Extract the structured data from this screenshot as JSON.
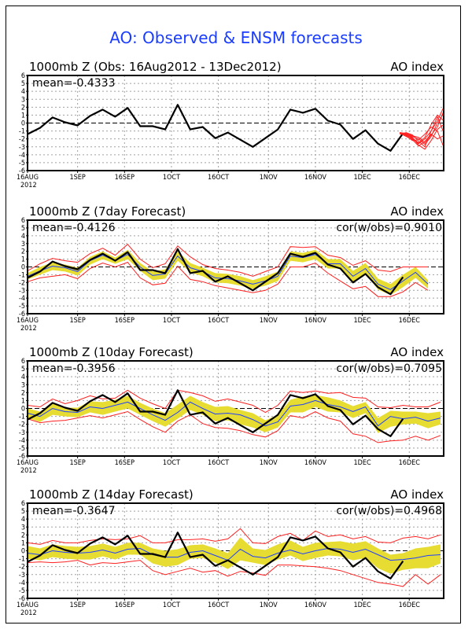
{
  "main_title": "AO: Observed & ENSM forecasts",
  "chart_data": [
    {
      "type": "line",
      "title": "1000mb Z (Obs: 16Aug2012 - 13Dec2012)",
      "right_label": "AO index",
      "stat_left": "mean=-0.4333",
      "stat_right": "",
      "ylim": [
        -6,
        6
      ],
      "yticks": [
        -6,
        -5,
        -4,
        -3,
        -2,
        -1,
        0,
        1,
        2,
        3,
        4,
        5,
        6
      ],
      "xticks": [
        "16AUG",
        "1SEP",
        "16SEP",
        "1OCT",
        "16OCT",
        "1NOV",
        "16NOV",
        "1DEC",
        "16DEC"
      ],
      "xtick_days": [
        0,
        16,
        31,
        46,
        61,
        77,
        92,
        107,
        122
      ],
      "xlabel_year": "2012",
      "grid": true,
      "x_day_range": [
        0,
        133
      ],
      "observed": {
        "days": [
          0,
          4,
          8,
          12,
          16,
          20,
          24,
          28,
          32,
          36,
          40,
          44,
          48,
          52,
          56,
          60,
          64,
          68,
          72,
          76,
          80,
          84,
          88,
          92,
          96,
          100,
          104,
          108,
          112,
          116,
          120
        ],
        "values": [
          -1.4,
          -0.6,
          0.7,
          0.1,
          -0.3,
          0.9,
          1.7,
          0.8,
          1.9,
          -0.4,
          -0.4,
          -0.8,
          2.3,
          -0.8,
          -0.5,
          -1.9,
          -1.2,
          -2.1,
          -3.0,
          -1.9,
          -0.8,
          1.7,
          1.3,
          1.8,
          0.3,
          -0.2,
          -2.0,
          -0.9,
          -2.6,
          -3.5,
          -1.3
        ]
      },
      "ensemble_forecast": {
        "color": "#ff2020",
        "start_day": 119,
        "members": [
          [
            -1.2,
            -1.3,
            -1.6,
            -1.8,
            -2.5,
            -1.5,
            -0.5,
            1.5
          ],
          [
            -1.3,
            -1.5,
            -2.0,
            -2.6,
            -2.0,
            -1.0,
            0.3,
            2.0
          ],
          [
            -1.3,
            -1.4,
            -1.8,
            -2.8,
            -3.3,
            -2.2,
            -0.8,
            -0.2
          ],
          [
            -1.2,
            -1.6,
            -2.2,
            -2.1,
            -1.4,
            -0.5,
            -1.0,
            -3.0
          ],
          [
            -1.4,
            -1.2,
            -1.5,
            -2.3,
            -3.0,
            -1.0,
            0.8,
            -1.2
          ],
          [
            -1.2,
            -1.5,
            -1.9,
            -2.5,
            -1.8,
            -0.2,
            1.0,
            0.3
          ],
          [
            -1.3,
            -1.7,
            -2.1,
            -2.9,
            -2.3,
            -1.4,
            -2.0,
            -1.6
          ],
          [
            -1.2,
            -1.4,
            -1.7,
            -2.0,
            -2.7,
            -1.7,
            0.0,
            1.2
          ]
        ]
      }
    },
    {
      "type": "line",
      "title": "1000mb Z (7day Forecast)",
      "right_label": "AO index",
      "stat_left": "mean=-0.4126",
      "stat_right": "cor(w/obs)=0.9010",
      "ylim": [
        -6,
        6
      ],
      "grid": true,
      "days": [
        0,
        4,
        8,
        12,
        16,
        20,
        24,
        28,
        32,
        36,
        40,
        44,
        48,
        52,
        56,
        60,
        64,
        68,
        72,
        76,
        80,
        84,
        88,
        92,
        96,
        100,
        104,
        108,
        112,
        116,
        120,
        124,
        128
      ],
      "observed": [
        -1.4,
        -0.6,
        0.7,
        0.1,
        -0.3,
        0.9,
        1.7,
        0.8,
        1.9,
        -0.4,
        -0.4,
        -0.8,
        2.3,
        -0.8,
        -0.5,
        -1.9,
        -1.2,
        -2.1,
        -3.0,
        -1.9,
        -0.8,
        1.7,
        1.3,
        1.8,
        0.3,
        -0.2,
        -2.0,
        -0.9,
        -2.6,
        -3.5,
        -1.3,
        null,
        null
      ],
      "ens_mean": [
        -1.2,
        -0.5,
        0.1,
        -0.1,
        -0.6,
        0.8,
        1.5,
        0.8,
        1.6,
        0.0,
        -1.1,
        -0.9,
        1.4,
        -0.1,
        -0.6,
        -1.4,
        -1.5,
        -1.8,
        -2.2,
        -1.8,
        -1.2,
        1.4,
        1.2,
        1.6,
        0.4,
        0.4,
        -1.2,
        -0.2,
        -2.2,
        -2.9,
        -1.8,
        -0.7,
        -2.2
      ],
      "spread_upper": [
        -0.8,
        0.0,
        0.6,
        0.3,
        -0.1,
        1.3,
        2.0,
        1.2,
        2.2,
        0.5,
        -0.6,
        -0.3,
        2.0,
        0.5,
        -0.1,
        -0.8,
        -0.9,
        -1.2,
        -1.7,
        -1.2,
        -0.6,
        2.0,
        1.8,
        2.2,
        1.0,
        1.0,
        -0.5,
        0.5,
        -1.5,
        -2.2,
        -1.0,
        0.0,
        -1.7
      ],
      "spread_lower": [
        -1.6,
        -1.0,
        -0.4,
        -0.6,
        -1.1,
        0.3,
        1.0,
        0.4,
        1.0,
        -0.5,
        -1.7,
        -1.5,
        0.8,
        -0.7,
        -1.2,
        -2.0,
        -2.1,
        -2.4,
        -2.8,
        -2.4,
        -1.8,
        0.8,
        0.6,
        1.0,
        -0.2,
        -0.2,
        -1.9,
        -0.9,
        -2.9,
        -3.6,
        -2.6,
        -1.4,
        -2.8
      ],
      "range_upper": [
        -0.5,
        0.4,
        1.1,
        0.8,
        0.6,
        1.7,
        2.4,
        1.5,
        2.9,
        1.0,
        -0.1,
        0.4,
        2.7,
        1.3,
        0.3,
        -0.2,
        -0.4,
        -0.7,
        -1.2,
        -0.6,
        0.0,
        2.6,
        2.5,
        2.6,
        1.5,
        1.2,
        0.2,
        0.8,
        -0.4,
        -0.6,
        0.0,
        0.0,
        0.0
      ],
      "range_lower": [
        -1.9,
        -1.4,
        -1.2,
        -1.0,
        -1.5,
        -0.2,
        0.5,
        0.0,
        0.6,
        -1.4,
        -2.3,
        -2.1,
        0.1,
        -1.6,
        -1.9,
        -2.4,
        -2.7,
        -3.0,
        -3.3,
        -3.0,
        -2.2,
        0.0,
        0.0,
        0.5,
        -0.8,
        -1.8,
        -2.8,
        -2.5,
        -3.8,
        -3.8,
        -3.2,
        -2.0,
        -3.0
      ]
    },
    {
      "type": "line",
      "title": "1000mb Z (10day Forecast)",
      "right_label": "AO index",
      "stat_left": "mean=-0.3956",
      "stat_right": "cor(w/obs)=0.7095",
      "ylim": [
        -6,
        6
      ],
      "grid": true,
      "days": [
        0,
        4,
        8,
        12,
        16,
        20,
        24,
        28,
        32,
        36,
        40,
        44,
        48,
        52,
        56,
        60,
        64,
        68,
        72,
        76,
        80,
        84,
        88,
        92,
        96,
        100,
        104,
        108,
        112,
        116,
        120,
        124,
        128,
        132
      ],
      "observed": [
        -1.4,
        -0.6,
        0.7,
        0.1,
        -0.3,
        0.9,
        1.7,
        0.8,
        1.9,
        -0.4,
        -0.4,
        -0.8,
        2.3,
        -0.8,
        -0.5,
        -1.9,
        -1.2,
        -2.1,
        -3.0,
        -1.9,
        -0.8,
        1.7,
        1.3,
        1.8,
        0.3,
        -0.2,
        -2.0,
        -0.9,
        -2.6,
        -3.5,
        -1.3,
        null,
        null,
        null
      ],
      "ens_mean": [
        -0.6,
        -1.0,
        0.0,
        -0.4,
        -0.5,
        0.2,
        0.0,
        0.4,
        0.8,
        0.0,
        -0.8,
        -1.5,
        -0.5,
        0.8,
        0.0,
        -0.7,
        -0.6,
        -0.8,
        -1.4,
        -2.2,
        -1.7,
        0.3,
        0.5,
        1.0,
        0.5,
        0.2,
        -0.4,
        0.2,
        -2.2,
        -1.0,
        -1.3,
        -1.1,
        -1.6,
        -1.2
      ],
      "spread_upper": [
        0.0,
        -0.4,
        0.7,
        0.1,
        0.1,
        0.9,
        0.8,
        1.1,
        1.6,
        0.7,
        0.0,
        -0.6,
        0.5,
        1.6,
        0.8,
        0.2,
        0.3,
        -0.2,
        -0.6,
        -1.5,
        -0.8,
        1.1,
        1.5,
        1.7,
        1.4,
        1.0,
        0.3,
        0.8,
        -1.2,
        -0.3,
        -0.4,
        -0.4,
        -0.6,
        -0.4
      ],
      "spread_lower": [
        -1.2,
        -1.7,
        -0.8,
        -1.0,
        -1.1,
        -0.5,
        -0.8,
        -0.4,
        0.0,
        -0.8,
        -1.6,
        -2.3,
        -1.3,
        -0.2,
        -0.8,
        -1.6,
        -1.5,
        -2.0,
        -2.4,
        -3.0,
        -2.4,
        -0.5,
        -0.5,
        0.2,
        -0.4,
        -0.5,
        -1.2,
        -0.6,
        -3.1,
        -2.3,
        -2.0,
        -1.9,
        -2.5,
        -2.0
      ],
      "range_upper": [
        0.4,
        0.2,
        1.2,
        0.6,
        1.0,
        1.6,
        1.2,
        1.3,
        2.3,
        1.3,
        0.6,
        0.0,
        2.3,
        2.0,
        1.6,
        0.9,
        1.2,
        0.8,
        0.4,
        -0.5,
        0.4,
        2.2,
        2.0,
        2.2,
        1.9,
        2.0,
        1.4,
        1.3,
        0.2,
        0.1,
        0.4,
        0.2,
        0.2,
        0.8
      ],
      "range_lower": [
        -1.3,
        -1.8,
        -1.6,
        -1.5,
        -1.2,
        -0.9,
        -1.2,
        -0.8,
        -0.4,
        -1.4,
        -2.3,
        -3.0,
        -1.6,
        -0.8,
        -1.9,
        -2.4,
        -2.5,
        -2.8,
        -3.3,
        -3.6,
        -2.8,
        -0.9,
        -1.2,
        -0.4,
        -1.2,
        -1.6,
        -3.2,
        -3.5,
        -4.3,
        -4.1,
        -4.0,
        -3.5,
        -4.0,
        -3.4
      ]
    },
    {
      "type": "line",
      "title": "1000mb Z (14day Forecast)",
      "right_label": "AO index",
      "stat_left": "mean=-0.3647",
      "stat_right": "cor(w/obs)=0.4968",
      "ylim": [
        -6,
        6
      ],
      "grid": true,
      "days": [
        0,
        4,
        8,
        12,
        16,
        20,
        24,
        28,
        32,
        36,
        40,
        44,
        48,
        52,
        56,
        60,
        64,
        68,
        72,
        76,
        80,
        84,
        88,
        92,
        96,
        100,
        104,
        108,
        112,
        116,
        120,
        124,
        128,
        132
      ],
      "observed": [
        -1.4,
        -0.6,
        0.7,
        0.1,
        -0.3,
        0.9,
        1.7,
        0.8,
        1.9,
        -0.4,
        -0.4,
        -0.8,
        2.3,
        -0.8,
        -0.5,
        -1.9,
        -1.2,
        -2.1,
        -3.0,
        -1.9,
        -0.8,
        1.7,
        1.3,
        1.8,
        0.3,
        -0.2,
        -2.0,
        -0.9,
        -2.6,
        -3.5,
        -1.3,
        null,
        null,
        null
      ],
      "ens_mean": [
        -0.3,
        -0.5,
        0.0,
        -0.2,
        -0.3,
        -0.2,
        0.1,
        -0.3,
        0.2,
        0.3,
        -0.5,
        -0.8,
        -0.8,
        -0.2,
        0.0,
        -0.6,
        -1.2,
        0.2,
        -0.7,
        -0.9,
        -0.3,
        0.1,
        -0.4,
        0.0,
        0.3,
        0.2,
        -0.2,
        0.2,
        -0.5,
        -1.2,
        -1.1,
        -0.9,
        -0.6,
        -0.5
      ],
      "spread_upper": [
        0.6,
        0.3,
        0.8,
        0.6,
        0.5,
        0.6,
        0.9,
        0.5,
        1.0,
        1.0,
        0.3,
        0.0,
        0.2,
        0.7,
        0.8,
        0.3,
        -0.3,
        1.7,
        0.3,
        0.1,
        0.8,
        1.3,
        0.5,
        1.0,
        1.1,
        1.2,
        0.9,
        1.2,
        0.3,
        -0.5,
        -0.3,
        0.3,
        0.5,
        0.8
      ],
      "spread_lower": [
        -1.0,
        -1.2,
        -0.8,
        -1.0,
        -1.1,
        -1.1,
        -0.7,
        -1.1,
        -0.5,
        -0.5,
        -1.6,
        -2.0,
        -1.8,
        -1.0,
        -0.9,
        -1.5,
        -2.3,
        -1.2,
        -1.5,
        -1.8,
        -1.1,
        -0.6,
        -1.3,
        -0.9,
        -0.6,
        -0.7,
        -1.2,
        -0.9,
        -2.2,
        -2.9,
        -2.4,
        -2.2,
        -2.2,
        -1.6
      ],
      "range_upper": [
        1.0,
        0.8,
        1.3,
        1.0,
        1.0,
        1.3,
        1.5,
        1.4,
        1.5,
        1.9,
        1.0,
        1.0,
        1.4,
        1.4,
        1.5,
        1.2,
        1.5,
        2.8,
        1.0,
        0.9,
        1.8,
        2.2,
        1.3,
        2.5,
        1.8,
        2.0,
        1.5,
        1.8,
        1.1,
        1.0,
        1.6,
        1.8,
        1.5,
        2.0
      ],
      "range_lower": [
        -1.5,
        -1.4,
        -1.5,
        -1.4,
        -1.2,
        -1.8,
        -1.5,
        -1.6,
        -1.4,
        -1.2,
        -2.5,
        -3.0,
        -2.6,
        -2.2,
        -2.7,
        -2.5,
        -3.2,
        -2.6,
        -2.8,
        -3.1,
        -1.8,
        -1.8,
        -1.9,
        -2.0,
        -2.2,
        -2.5,
        -3.0,
        -3.5,
        -4.0,
        -4.2,
        -4.5,
        -3.0,
        -4.2,
        -3.0
      ]
    }
  ],
  "colors": {
    "title": "#1a3dff",
    "observed": "#000000",
    "ens_mean": "#2040ff",
    "spread_fill": "#e6dc32",
    "range_line": "#ff2020",
    "grid": "#a0a0a0"
  }
}
